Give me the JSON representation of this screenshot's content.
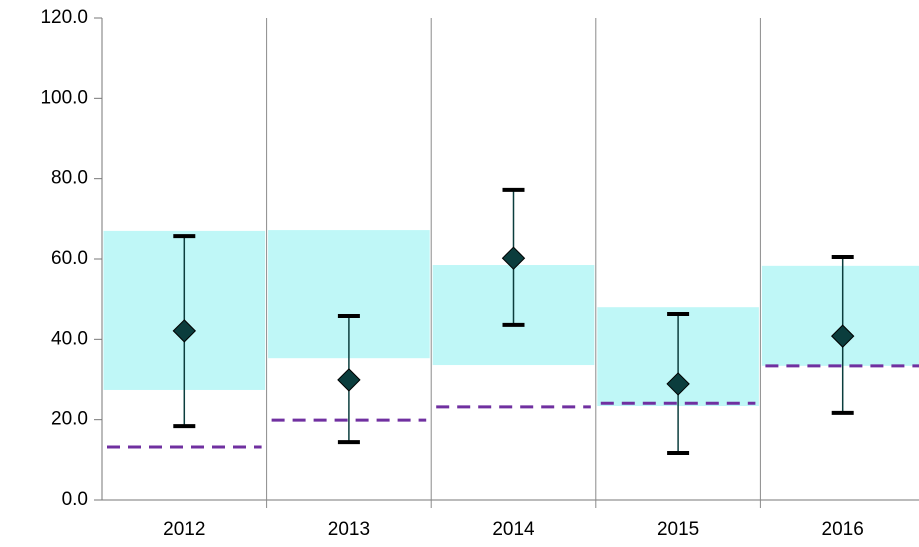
{
  "chart_data": {
    "type": "range",
    "categories": [
      "2012",
      "2013",
      "2014",
      "2015",
      "2016"
    ],
    "values": [
      42.1,
      29.9,
      60.2,
      28.9,
      40.8
    ],
    "error_low": [
      18.4,
      14.4,
      43.6,
      11.7,
      21.7
    ],
    "error_high": [
      65.7,
      45.8,
      77.2,
      46.3,
      60.5
    ],
    "range_low": [
      27.4,
      35.3,
      33.6,
      23.4,
      33.4
    ],
    "range_high": [
      67.0,
      67.2,
      58.5,
      48.0,
      58.3
    ],
    "threshold": [
      13.2,
      19.9,
      23.2,
      24.1,
      33.4
    ],
    "color": "#0b3d3d",
    "range_color": "#bff7f7",
    "threshold_color": "#7030a0",
    "ylim": [
      0,
      120
    ],
    "yticks": [
      {
        "value": 0,
        "label": "0.0"
      },
      {
        "value": 20,
        "label": "20.0"
      },
      {
        "value": 40,
        "label": "40.0"
      },
      {
        "value": 60,
        "label": "60.0"
      },
      {
        "value": 80,
        "label": "80.0"
      },
      {
        "value": 100,
        "label": "100.0"
      },
      {
        "value": 120,
        "label": "120.0"
      }
    ],
    "grid": true
  }
}
